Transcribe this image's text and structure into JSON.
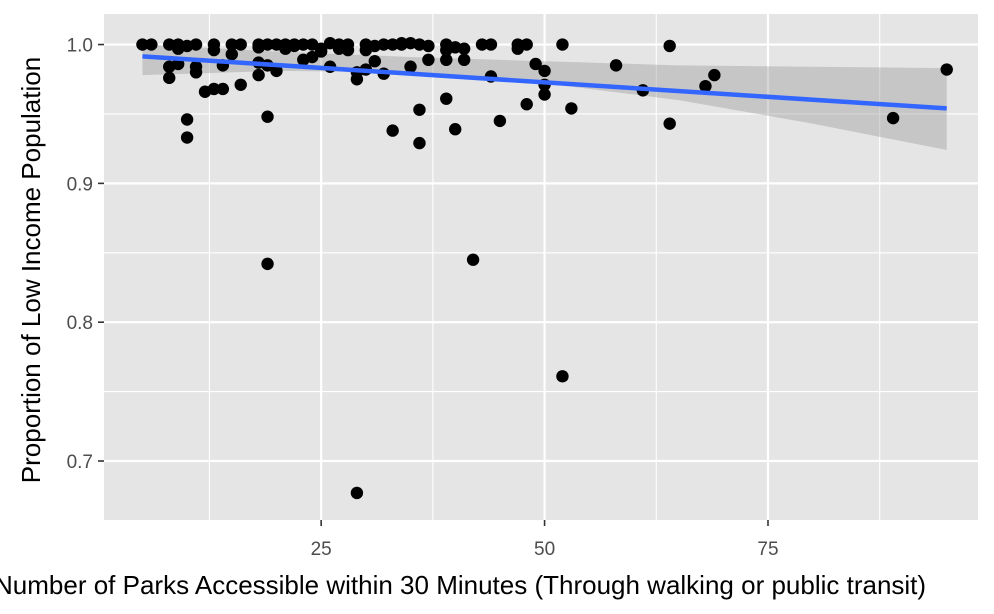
{
  "chart_data": {
    "type": "scatter",
    "xlabel": "Number of Parks Accessible within 30 Minutes (Through walking or public transit)",
    "ylabel": "Proportion of Low Income Population",
    "xlim": [
      0.7,
      98.5
    ],
    "ylim": [
      0.6575,
      1.022
    ],
    "x_ticks": [
      25,
      50,
      75
    ],
    "x_tick_labels": [
      "25",
      "50",
      "75"
    ],
    "y_ticks": [
      0.7,
      0.8,
      0.9,
      1.0
    ],
    "y_tick_labels": [
      "0.7",
      "0.8",
      "0.9",
      "1.0"
    ],
    "grid": true,
    "legend": "none",
    "colors": {
      "panel": "#e5e5e5",
      "grid": "#ffffff",
      "points": "#000000",
      "trend_line": "#3366ff",
      "confidence_band": "#999999"
    },
    "points": [
      {
        "x": 5,
        "y": 1.0
      },
      {
        "x": 6,
        "y": 1.0
      },
      {
        "x": 8,
        "y": 1.0
      },
      {
        "x": 9,
        "y": 1.0
      },
      {
        "x": 10,
        "y": 0.999
      },
      {
        "x": 11,
        "y": 1.0
      },
      {
        "x": 8,
        "y": 0.976
      },
      {
        "x": 8,
        "y": 0.984
      },
      {
        "x": 9,
        "y": 0.986
      },
      {
        "x": 9,
        "y": 0.997
      },
      {
        "x": 10,
        "y": 0.946
      },
      {
        "x": 10,
        "y": 0.933
      },
      {
        "x": 11,
        "y": 0.98
      },
      {
        "x": 11,
        "y": 0.984
      },
      {
        "x": 12,
        "y": 0.966
      },
      {
        "x": 13,
        "y": 0.968
      },
      {
        "x": 13,
        "y": 0.996
      },
      {
        "x": 13,
        "y": 1.0
      },
      {
        "x": 14,
        "y": 0.968
      },
      {
        "x": 14,
        "y": 0.985
      },
      {
        "x": 15,
        "y": 0.993
      },
      {
        "x": 15,
        "y": 1.0
      },
      {
        "x": 16,
        "y": 0.971
      },
      {
        "x": 16,
        "y": 1.0
      },
      {
        "x": 18,
        "y": 1.0
      },
      {
        "x": 18,
        "y": 0.998
      },
      {
        "x": 18,
        "y": 0.978
      },
      {
        "x": 18,
        "y": 0.987
      },
      {
        "x": 19,
        "y": 0.948
      },
      {
        "x": 19,
        "y": 0.842
      },
      {
        "x": 19,
        "y": 0.985
      },
      {
        "x": 19,
        "y": 1.0
      },
      {
        "x": 20,
        "y": 0.981
      },
      {
        "x": 20,
        "y": 1.0
      },
      {
        "x": 21,
        "y": 1.0
      },
      {
        "x": 21,
        "y": 0.997
      },
      {
        "x": 22,
        "y": 1.0
      },
      {
        "x": 22,
        "y": 0.999
      },
      {
        "x": 23,
        "y": 0.989
      },
      {
        "x": 23,
        "y": 1.0
      },
      {
        "x": 24,
        "y": 1.0
      },
      {
        "x": 24,
        "y": 0.991
      },
      {
        "x": 25,
        "y": 0.997
      },
      {
        "x": 25,
        "y": 0.995
      },
      {
        "x": 26,
        "y": 1.001
      },
      {
        "x": 26,
        "y": 0.984
      },
      {
        "x": 27,
        "y": 1.0
      },
      {
        "x": 27,
        "y": 0.997
      },
      {
        "x": 28,
        "y": 1.0
      },
      {
        "x": 28,
        "y": 0.996
      },
      {
        "x": 29,
        "y": 0.975
      },
      {
        "x": 29,
        "y": 0.98
      },
      {
        "x": 29,
        "y": 0.677
      },
      {
        "x": 30,
        "y": 1.0
      },
      {
        "x": 30,
        "y": 0.996
      },
      {
        "x": 30,
        "y": 0.982
      },
      {
        "x": 31,
        "y": 0.999
      },
      {
        "x": 31,
        "y": 0.988
      },
      {
        "x": 32,
        "y": 0.979
      },
      {
        "x": 32,
        "y": 1.0
      },
      {
        "x": 33,
        "y": 1.0
      },
      {
        "x": 33,
        "y": 0.938
      },
      {
        "x": 34,
        "y": 1.0
      },
      {
        "x": 34,
        "y": 1.001
      },
      {
        "x": 35,
        "y": 1.001
      },
      {
        "x": 35,
        "y": 0.984
      },
      {
        "x": 36,
        "y": 1.0
      },
      {
        "x": 36,
        "y": 0.953
      },
      {
        "x": 36,
        "y": 0.929
      },
      {
        "x": 37,
        "y": 0.999
      },
      {
        "x": 37,
        "y": 0.989
      },
      {
        "x": 39,
        "y": 1.0
      },
      {
        "x": 39,
        "y": 0.996
      },
      {
        "x": 39,
        "y": 0.961
      },
      {
        "x": 39,
        "y": 0.989
      },
      {
        "x": 40,
        "y": 0.998
      },
      {
        "x": 40,
        "y": 0.939
      },
      {
        "x": 41,
        "y": 0.997
      },
      {
        "x": 41,
        "y": 0.989
      },
      {
        "x": 42,
        "y": 0.845
      },
      {
        "x": 43,
        "y": 1.0
      },
      {
        "x": 44,
        "y": 1.0
      },
      {
        "x": 44,
        "y": 0.977
      },
      {
        "x": 45,
        "y": 0.945
      },
      {
        "x": 47,
        "y": 1.0
      },
      {
        "x": 47,
        "y": 0.997
      },
      {
        "x": 48,
        "y": 1.0
      },
      {
        "x": 48,
        "y": 0.957
      },
      {
        "x": 49,
        "y": 0.986
      },
      {
        "x": 50,
        "y": 0.981
      },
      {
        "x": 50,
        "y": 0.971
      },
      {
        "x": 50,
        "y": 0.964
      },
      {
        "x": 52,
        "y": 1.0
      },
      {
        "x": 52,
        "y": 0.761
      },
      {
        "x": 53,
        "y": 0.954
      },
      {
        "x": 58,
        "y": 0.985
      },
      {
        "x": 61,
        "y": 0.967
      },
      {
        "x": 64,
        "y": 0.999
      },
      {
        "x": 64,
        "y": 0.943
      },
      {
        "x": 68,
        "y": 0.97
      },
      {
        "x": 69,
        "y": 0.978
      },
      {
        "x": 89,
        "y": 0.947
      },
      {
        "x": 95,
        "y": 0.982
      }
    ],
    "trend_line": {
      "x": [
        5,
        95
      ],
      "y": [
        0.9915,
        0.954
      ]
    },
    "confidence_band": {
      "x": [
        5,
        20,
        35,
        50,
        65,
        80,
        95
      ],
      "lower": [
        0.978,
        0.981,
        0.98,
        0.972,
        0.96,
        0.943,
        0.924
      ],
      "upper": [
        1.0,
        0.995,
        0.991,
        0.988,
        0.985,
        0.984,
        0.983
      ]
    }
  }
}
